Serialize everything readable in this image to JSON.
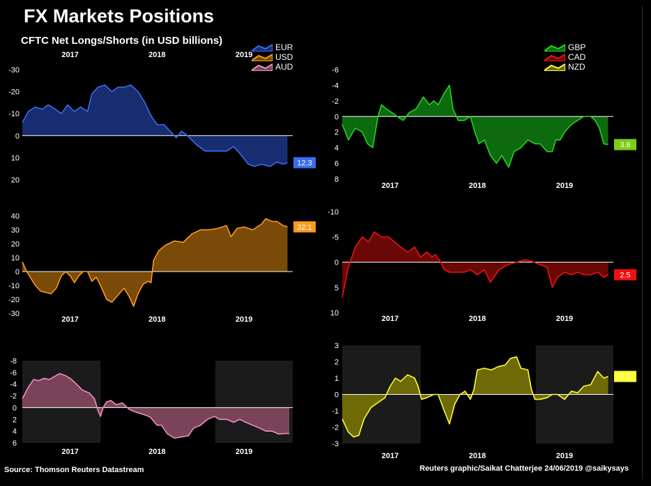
{
  "header": {
    "title": "FX Markets Positions",
    "subtitle": "CFTC Net Longs/Shorts (in USD billions)"
  },
  "footer": {
    "source": "Source: Thomson Reuters Datastream",
    "credit": "Reuters graphic/Saikat Chatterjee 24/06/2019 @saikysays"
  },
  "legends": {
    "left": [
      {
        "label": "EUR",
        "color": "#3b6cf0"
      },
      {
        "label": "USD",
        "color": "#ff9a1a"
      },
      {
        "label": "AUD",
        "color": "#f08cc0"
      }
    ],
    "right": [
      {
        "label": "GBP",
        "color": "#22d422"
      },
      {
        "label": "CAD",
        "color": "#ee1111"
      },
      {
        "label": "NZD",
        "color": "#ffff33"
      }
    ]
  },
  "chart_data": [
    {
      "type": "area",
      "series": [
        {
          "name": "EUR"
        }
      ],
      "line_color": "#3b6cf0",
      "fill_color": "#182c70",
      "y_inverted": true,
      "ylim": [
        -30,
        20
      ],
      "yticks": [
        -30,
        -20,
        -10,
        0,
        10,
        20
      ],
      "ytick_labels": [
        "-30",
        "-20",
        "-10",
        "0",
        "10",
        "20"
      ],
      "xlim": [
        2016.45,
        2019.56
      ],
      "xticks": [
        2017,
        2018,
        2019
      ],
      "xtick_labels": [
        "2017",
        "2018",
        "2019"
      ],
      "last_value_label": "12.3",
      "label_color": "#3b6cf0",
      "label_text_color": "#ffffff",
      "x": [
        2016.45,
        2016.52,
        2016.6,
        2016.68,
        2016.75,
        2016.83,
        2016.9,
        2016.97,
        2017.05,
        2017.12,
        2017.2,
        2017.25,
        2017.32,
        2017.4,
        2017.48,
        2017.55,
        2017.62,
        2017.7,
        2017.78,
        2017.86,
        2017.93,
        2018.0,
        2018.08,
        2018.15,
        2018.22,
        2018.28,
        2018.35,
        2018.45,
        2018.55,
        2018.65,
        2018.72,
        2018.8,
        2018.88,
        2018.95,
        2019.05,
        2019.12,
        2019.2,
        2019.3,
        2019.38,
        2019.45,
        2019.5
      ],
      "values": [
        -6,
        -11,
        -13,
        -12,
        -14,
        -12,
        -10,
        -14,
        -11,
        -13,
        -11,
        -19,
        -22,
        -23,
        -20,
        -22,
        -22,
        -23,
        -20,
        -15,
        -9,
        -5,
        -5,
        -2,
        1,
        -2,
        0,
        4,
        7,
        7,
        7,
        7,
        5,
        8,
        13,
        14,
        13,
        14,
        12,
        13,
        12.3
      ]
    },
    {
      "type": "area",
      "series": [
        {
          "name": "USD"
        }
      ],
      "line_color": "#ff9a1a",
      "fill_color": "#7a4a08",
      "y_inverted": false,
      "ylim": [
        -30,
        40
      ],
      "yticks": [
        -30,
        -20,
        -10,
        0,
        10,
        20,
        30,
        40
      ],
      "ytick_labels": [
        "-30",
        "-20",
        "-10",
        "0",
        "10",
        "20",
        "30",
        "40"
      ],
      "xlim": [
        2016.45,
        2019.56
      ],
      "xticks": [
        2017,
        2018,
        2019
      ],
      "xtick_labels": [
        "2017",
        "2018",
        "2019"
      ],
      "last_value_label": "32.1",
      "label_color": "#ff9a1a",
      "label_text_color": "#ffffff",
      "x": [
        2016.45,
        2016.5,
        2016.55,
        2016.6,
        2016.66,
        2016.72,
        2016.78,
        2016.84,
        2016.9,
        2016.95,
        2017.0,
        2017.05,
        2017.1,
        2017.15,
        2017.2,
        2017.25,
        2017.3,
        2017.35,
        2017.42,
        2017.48,
        2017.55,
        2017.62,
        2017.68,
        2017.73,
        2017.78,
        2017.84,
        2017.9,
        2017.93,
        2017.96,
        2018.02,
        2018.1,
        2018.2,
        2018.3,
        2018.4,
        2018.5,
        2018.6,
        2018.7,
        2018.8,
        2018.85,
        2018.92,
        2019.0,
        2019.1,
        2019.2,
        2019.25,
        2019.32,
        2019.38,
        2019.45,
        2019.5
      ],
      "values": [
        7,
        0,
        -5,
        -10,
        -14,
        -15,
        -16,
        -12,
        -3,
        0,
        -3,
        -8,
        -3,
        0,
        0,
        -7,
        -4,
        -10,
        -20,
        -22,
        -17,
        -12,
        -18,
        -25,
        -16,
        -9,
        -7,
        -8,
        8,
        15,
        19,
        22,
        21,
        27,
        30,
        30,
        31,
        33,
        25,
        31,
        32,
        30,
        34,
        38,
        36,
        36,
        33,
        32.1
      ]
    },
    {
      "type": "area",
      "series": [
        {
          "name": "AUD"
        }
      ],
      "line_color": "#f08cc0",
      "fill_color": "#7a4458",
      "y_inverted": true,
      "ylim": [
        -8,
        6
      ],
      "yticks": [
        -8,
        -6,
        -4,
        -2,
        0,
        2,
        4,
        6
      ],
      "ytick_labels": [
        "-8",
        "-6",
        "-4",
        "-2",
        "0",
        "2",
        "4",
        "6"
      ],
      "xlim": [
        2016.45,
        2019.56
      ],
      "xticks": [
        2017,
        2018,
        2019
      ],
      "xtick_labels": [
        "2017",
        "2018",
        "2019"
      ],
      "shade_ranges": [
        [
          2016.45,
          2017.35
        ],
        [
          2018.67,
          2019.56
        ]
      ],
      "x": [
        2016.45,
        2016.52,
        2016.58,
        2016.64,
        2016.7,
        2016.76,
        2016.82,
        2016.88,
        2016.94,
        2017.0,
        2017.06,
        2017.14,
        2017.22,
        2017.28,
        2017.32,
        2017.35,
        2017.38,
        2017.42,
        2017.47,
        2017.53,
        2017.6,
        2017.68,
        2017.76,
        2017.85,
        2017.92,
        2018.0,
        2018.05,
        2018.12,
        2018.2,
        2018.28,
        2018.36,
        2018.42,
        2018.5,
        2018.58,
        2018.66,
        2018.72,
        2018.8,
        2018.88,
        2018.95,
        2019.02,
        2019.1,
        2019.18,
        2019.25,
        2019.32,
        2019.4,
        2019.48,
        2019.52
      ],
      "values": [
        -1.5,
        -3.5,
        -4.8,
        -4.6,
        -5,
        -4.8,
        -5.3,
        -5.8,
        -5.5,
        -5,
        -4.2,
        -3,
        -2.5,
        -1.5,
        0.5,
        1.5,
        0,
        -1,
        -1.2,
        -0.5,
        -0.8,
        0.3,
        0.8,
        1.2,
        1.6,
        3,
        3,
        4.5,
        5.2,
        5,
        4.8,
        3.5,
        3,
        2,
        1.5,
        2,
        2,
        2.5,
        2,
        2.5,
        3,
        3.5,
        4,
        4,
        4.5,
        4.4,
        4.4
      ]
    },
    {
      "type": "area",
      "series": [
        {
          "name": "GBP"
        }
      ],
      "line_color": "#22d422",
      "fill_color": "#0e6a0e",
      "y_inverted": true,
      "ylim": [
        -6,
        8
      ],
      "yticks": [
        -6,
        -4,
        -2,
        0,
        2,
        4,
        6,
        8
      ],
      "ytick_labels": [
        "-6",
        "-4",
        "-2",
        "0",
        "2",
        "4",
        "6",
        "8"
      ],
      "xlim": [
        2016.45,
        2019.56
      ],
      "xticks": [
        2017,
        2018,
        2019
      ],
      "xtick_labels": [
        "2017",
        "2018",
        "2019"
      ],
      "last_value_label": "3.6",
      "label_color": "#7ecb1a",
      "label_text_color": "#ffffff",
      "x": [
        2016.45,
        2016.52,
        2016.6,
        2016.68,
        2016.74,
        2016.8,
        2016.86,
        2016.9,
        2016.95,
        2017.02,
        2017.08,
        2017.15,
        2017.22,
        2017.3,
        2017.38,
        2017.45,
        2017.5,
        2017.55,
        2017.62,
        2017.68,
        2017.72,
        2017.78,
        2017.85,
        2017.92,
        2017.97,
        2018.02,
        2018.08,
        2018.15,
        2018.22,
        2018.28,
        2018.36,
        2018.42,
        2018.5,
        2018.58,
        2018.66,
        2018.72,
        2018.8,
        2018.86,
        2018.9,
        2018.95,
        2019.0,
        2019.08,
        2019.15,
        2019.22,
        2019.3,
        2019.35,
        2019.4,
        2019.45,
        2019.5
      ],
      "values": [
        1,
        3,
        1.5,
        2,
        3.5,
        4,
        0,
        -1.5,
        -1,
        -0.5,
        0,
        0.5,
        -0.5,
        -1,
        -2.5,
        -1.5,
        -2,
        -1.5,
        -3,
        -4,
        -1,
        0.5,
        0.5,
        0,
        2,
        3.5,
        3,
        5,
        6,
        5,
        6.5,
        4.5,
        4,
        3,
        3.5,
        3.5,
        4.5,
        4.5,
        3,
        3,
        2,
        1,
        0.5,
        0,
        0,
        0.5,
        1.5,
        3.5,
        3.6
      ]
    },
    {
      "type": "area",
      "series": [
        {
          "name": "CAD"
        }
      ],
      "line_color": "#ee1111",
      "fill_color": "#6a0808",
      "y_inverted": true,
      "ylim": [
        -10,
        10
      ],
      "yticks": [
        -10,
        -5,
        0,
        5,
        10
      ],
      "ytick_labels": [
        "-10",
        "-5",
        "0",
        "5",
        "10"
      ],
      "xlim": [
        2016.45,
        2019.56
      ],
      "xticks": [
        2017,
        2018,
        2019
      ],
      "xtick_labels": [
        "2017",
        "2018",
        "2019"
      ],
      "last_value_label": "2.5",
      "label_color": "#ee1111",
      "label_text_color": "#ffffff",
      "x": [
        2016.45,
        2016.52,
        2016.6,
        2016.68,
        2016.75,
        2016.82,
        2016.9,
        2016.98,
        2017.05,
        2017.12,
        2017.2,
        2017.28,
        2017.35,
        2017.42,
        2017.48,
        2017.52,
        2017.58,
        2017.62,
        2017.68,
        2017.75,
        2017.85,
        2017.92,
        2018.0,
        2018.08,
        2018.15,
        2018.25,
        2018.35,
        2018.45,
        2018.55,
        2018.65,
        2018.72,
        2018.8,
        2018.86,
        2018.92,
        2019.0,
        2019.08,
        2019.15,
        2019.22,
        2019.3,
        2019.38,
        2019.45,
        2019.5
      ],
      "values": [
        7,
        1,
        -3,
        -5,
        -4,
        -6,
        -5,
        -5,
        -4,
        -3,
        -2,
        -3,
        -1,
        -2,
        -1,
        -1.5,
        0,
        1.5,
        2,
        2,
        2,
        1.5,
        2.5,
        1.5,
        4,
        1.5,
        0.5,
        0,
        -0.5,
        0,
        0.5,
        1,
        5,
        3,
        2,
        2.5,
        2,
        2.5,
        2.5,
        2,
        3,
        2.5
      ]
    },
    {
      "type": "area",
      "series": [
        {
          "name": "NZD"
        }
      ],
      "line_color": "#ffff33",
      "fill_color": "#6e6a08",
      "y_inverted": false,
      "ylim": [
        -3,
        3
      ],
      "yticks": [
        -3,
        -2,
        -1,
        0,
        1,
        2,
        3
      ],
      "ytick_labels": [
        "-3",
        "-2",
        "-1",
        "0",
        "1",
        "2",
        "3"
      ],
      "xlim": [
        2016.45,
        2019.56
      ],
      "xticks": [
        2017,
        2018,
        2019
      ],
      "xtick_labels": [
        "2017",
        "2018",
        "2019"
      ],
      "last_value_label": "1.1",
      "label_color": "#ffff33",
      "label_text_color": "#ffffff",
      "shade_ranges": [
        [
          2016.45,
          2017.35
        ],
        [
          2018.67,
          2019.56
        ]
      ],
      "x": [
        2016.45,
        2016.52,
        2016.58,
        2016.64,
        2016.7,
        2016.78,
        2016.86,
        2016.94,
        2017.0,
        2017.06,
        2017.12,
        2017.2,
        2017.28,
        2017.32,
        2017.36,
        2017.42,
        2017.5,
        2017.55,
        2017.62,
        2017.68,
        2017.74,
        2017.8,
        2017.86,
        2017.92,
        2017.96,
        2018.0,
        2018.08,
        2018.16,
        2018.24,
        2018.32,
        2018.38,
        2018.45,
        2018.5,
        2018.58,
        2018.62,
        2018.66,
        2018.72,
        2018.8,
        2018.86,
        2018.92,
        2019.0,
        2019.08,
        2019.15,
        2019.22,
        2019.3,
        2019.38,
        2019.45,
        2019.5
      ],
      "values": [
        -1.5,
        -2.3,
        -2.6,
        -2.5,
        -1.5,
        -0.8,
        -0.5,
        -0.2,
        0.5,
        1,
        0.8,
        1.2,
        1,
        0.5,
        -0.3,
        -0.2,
        0,
        0,
        -1,
        -1.8,
        -0.6,
        0,
        0.2,
        -0.3,
        0.3,
        1.5,
        1.6,
        1.5,
        1.7,
        1.8,
        2.2,
        2.3,
        1.6,
        1.5,
        0.3,
        -0.3,
        -0.3,
        -0.2,
        0,
        0,
        -0.3,
        0.2,
        0.1,
        0.5,
        0.6,
        1.4,
        1,
        1.1
      ]
    }
  ]
}
